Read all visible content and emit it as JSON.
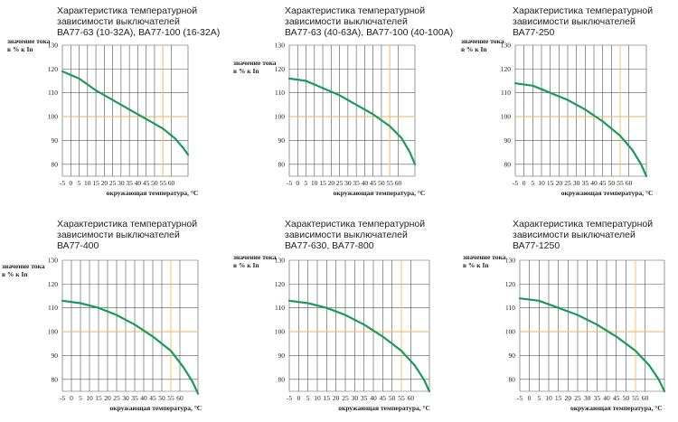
{
  "chart_data": [
    {
      "type": "line",
      "title_lines": [
        "Характеристика температурной",
        "зависимости выключателей",
        "ВА77-63 (10-32А), ВА77-100 (16-32А)"
      ],
      "ylabel_lines": [
        "значение тока",
        "в % к In"
      ],
      "xlabel": "окружающая температура, °С",
      "x_ticks": [
        "-5",
        "0",
        "5",
        "10",
        "15",
        "20",
        "25",
        "30",
        "35",
        "40",
        "45",
        "50",
        "55",
        "60"
      ],
      "y_ticks": [
        "80",
        "90",
        "100",
        "110",
        "120",
        "130"
      ],
      "xlim": [
        -5,
        70
      ],
      "ylim": [
        75,
        130
      ],
      "ref_x": 55,
      "ref_y": 100,
      "grid": true,
      "colors": {
        "curve": "#1a9a5a",
        "ref": "#f0c070",
        "grid": "#555555"
      },
      "series": [
        {
          "x": [
            -5,
            5,
            15,
            25,
            35,
            45,
            55,
            62,
            67,
            70
          ],
          "y": [
            119,
            116,
            111,
            107,
            103,
            99,
            95,
            91,
            87,
            84
          ]
        }
      ]
    },
    {
      "type": "line",
      "title_lines": [
        "Характеристика температурной",
        "зависимости выключателей",
        "ВА77-63 (40-63А), ВА77-100 (40-100А)"
      ],
      "ylabel_lines": [
        "значение тока",
        "в % к In"
      ],
      "xlabel": "окружающая температура, °С",
      "x_ticks": [
        "-5",
        "0",
        "5",
        "10",
        "15",
        "20",
        "25",
        "30",
        "35",
        "40",
        "45",
        "50",
        "55",
        "60"
      ],
      "y_ticks": [
        "80",
        "90",
        "100",
        "110",
        "120",
        "130"
      ],
      "xlim": [
        -5,
        70
      ],
      "ylim": [
        75,
        130
      ],
      "ref_x": 55,
      "ref_y": 100,
      "grid": true,
      "colors": {
        "curve": "#1a9a5a",
        "ref": "#f0c070",
        "grid": "#555555"
      },
      "series": [
        {
          "x": [
            -5,
            5,
            15,
            25,
            35,
            45,
            55,
            62,
            67,
            70
          ],
          "y": [
            116,
            115,
            112,
            109,
            105,
            101,
            96,
            91,
            85,
            80
          ]
        }
      ]
    },
    {
      "type": "line",
      "title_lines": [
        "Характеристика температурной",
        "зависимости выключателей",
        "ВА77-250"
      ],
      "ylabel_lines": [
        "значение тока",
        "в % к In"
      ],
      "xlabel": "окружающая температура, °С",
      "x_ticks": [
        "-5",
        "0",
        "5",
        "10",
        "15",
        "20",
        "25",
        "30",
        "35",
        "40",
        "45",
        "50",
        "55",
        "60"
      ],
      "y_ticks": [
        "80",
        "90",
        "100",
        "110",
        "120",
        "130"
      ],
      "xlim": [
        -5,
        70
      ],
      "ylim": [
        75,
        130
      ],
      "ref_x": 55,
      "ref_y": 100,
      "grid": true,
      "colors": {
        "curve": "#1a9a5a",
        "ref": "#f0c070",
        "grid": "#555555"
      },
      "series": [
        {
          "x": [
            -5,
            5,
            15,
            25,
            35,
            45,
            55,
            62,
            67,
            70
          ],
          "y": [
            114,
            113,
            110,
            107,
            103,
            98,
            92,
            86,
            80,
            75
          ]
        }
      ]
    },
    {
      "type": "line",
      "title_lines": [
        "Характеристика температурной",
        "зависимости выключателей",
        "ВА77-400"
      ],
      "ylabel_lines": [
        "значение тока",
        "в % к In"
      ],
      "xlabel": "окружающая температура, °С",
      "x_ticks": [
        "-5",
        "0",
        "5",
        "10",
        "15",
        "20",
        "25",
        "30",
        "35",
        "40",
        "45",
        "50",
        "55",
        "60"
      ],
      "y_ticks": [
        "80",
        "90",
        "100",
        "110",
        "120",
        "130"
      ],
      "xlim": [
        -5,
        70
      ],
      "ylim": [
        75,
        130
      ],
      "ref_x": 55,
      "ref_y": 100,
      "grid": true,
      "colors": {
        "curve": "#1a9a5a",
        "ref": "#f0c070",
        "grid": "#555555"
      },
      "series": [
        {
          "x": [
            -5,
            5,
            15,
            25,
            35,
            45,
            55,
            62,
            67,
            70
          ],
          "y": [
            113,
            112,
            110,
            107,
            103,
            98,
            92,
            85,
            79,
            74
          ]
        }
      ]
    },
    {
      "type": "line",
      "title_lines": [
        "Характеристика температурной",
        "зависимости выключателей",
        "ВА77-630, ВА77-800"
      ],
      "ylabel_lines": [
        "значение тока",
        "в % к In"
      ],
      "xlabel": "окружающая температура, °С",
      "x_ticks": [
        "-5",
        "0",
        "5",
        "10",
        "15",
        "20",
        "25",
        "30",
        "35",
        "40",
        "45",
        "50",
        "55",
        "60"
      ],
      "y_ticks": [
        "80",
        "90",
        "100",
        "110",
        "120",
        "130"
      ],
      "xlim": [
        -5,
        70
      ],
      "ylim": [
        75,
        130
      ],
      "ref_x": 55,
      "ref_y": 100,
      "grid": true,
      "colors": {
        "curve": "#1a9a5a",
        "ref": "#f0c070",
        "grid": "#555555"
      },
      "series": [
        {
          "x": [
            -5,
            5,
            15,
            25,
            35,
            45,
            55,
            62,
            67,
            70
          ],
          "y": [
            113,
            112,
            110,
            107,
            103,
            98,
            92,
            86,
            80,
            75
          ]
        }
      ]
    },
    {
      "type": "line",
      "title_lines": [
        "Характеристика температурной",
        "зависимости выключателей",
        "ВА77-1250"
      ],
      "ylabel_lines": [
        "значение тока",
        "в % к In"
      ],
      "xlabel": "окружающая температура, °С",
      "x_ticks": [
        "-5",
        "0",
        "5",
        "10",
        "15",
        "20",
        "25",
        "30",
        "35",
        "40",
        "45",
        "50",
        "55",
        "60"
      ],
      "y_ticks": [
        "80",
        "90",
        "100",
        "110",
        "120",
        "130"
      ],
      "xlim": [
        -5,
        70
      ],
      "ylim": [
        75,
        130
      ],
      "ref_x": 55,
      "ref_y": 100,
      "grid": true,
      "colors": {
        "curve": "#1a9a5a",
        "ref": "#f0c070",
        "grid": "#555555"
      },
      "series": [
        {
          "x": [
            -5,
            5,
            15,
            25,
            35,
            45,
            55,
            62,
            67,
            70
          ],
          "y": [
            114,
            113,
            110,
            107,
            103,
            98,
            92,
            86,
            80,
            75
          ]
        }
      ]
    }
  ]
}
